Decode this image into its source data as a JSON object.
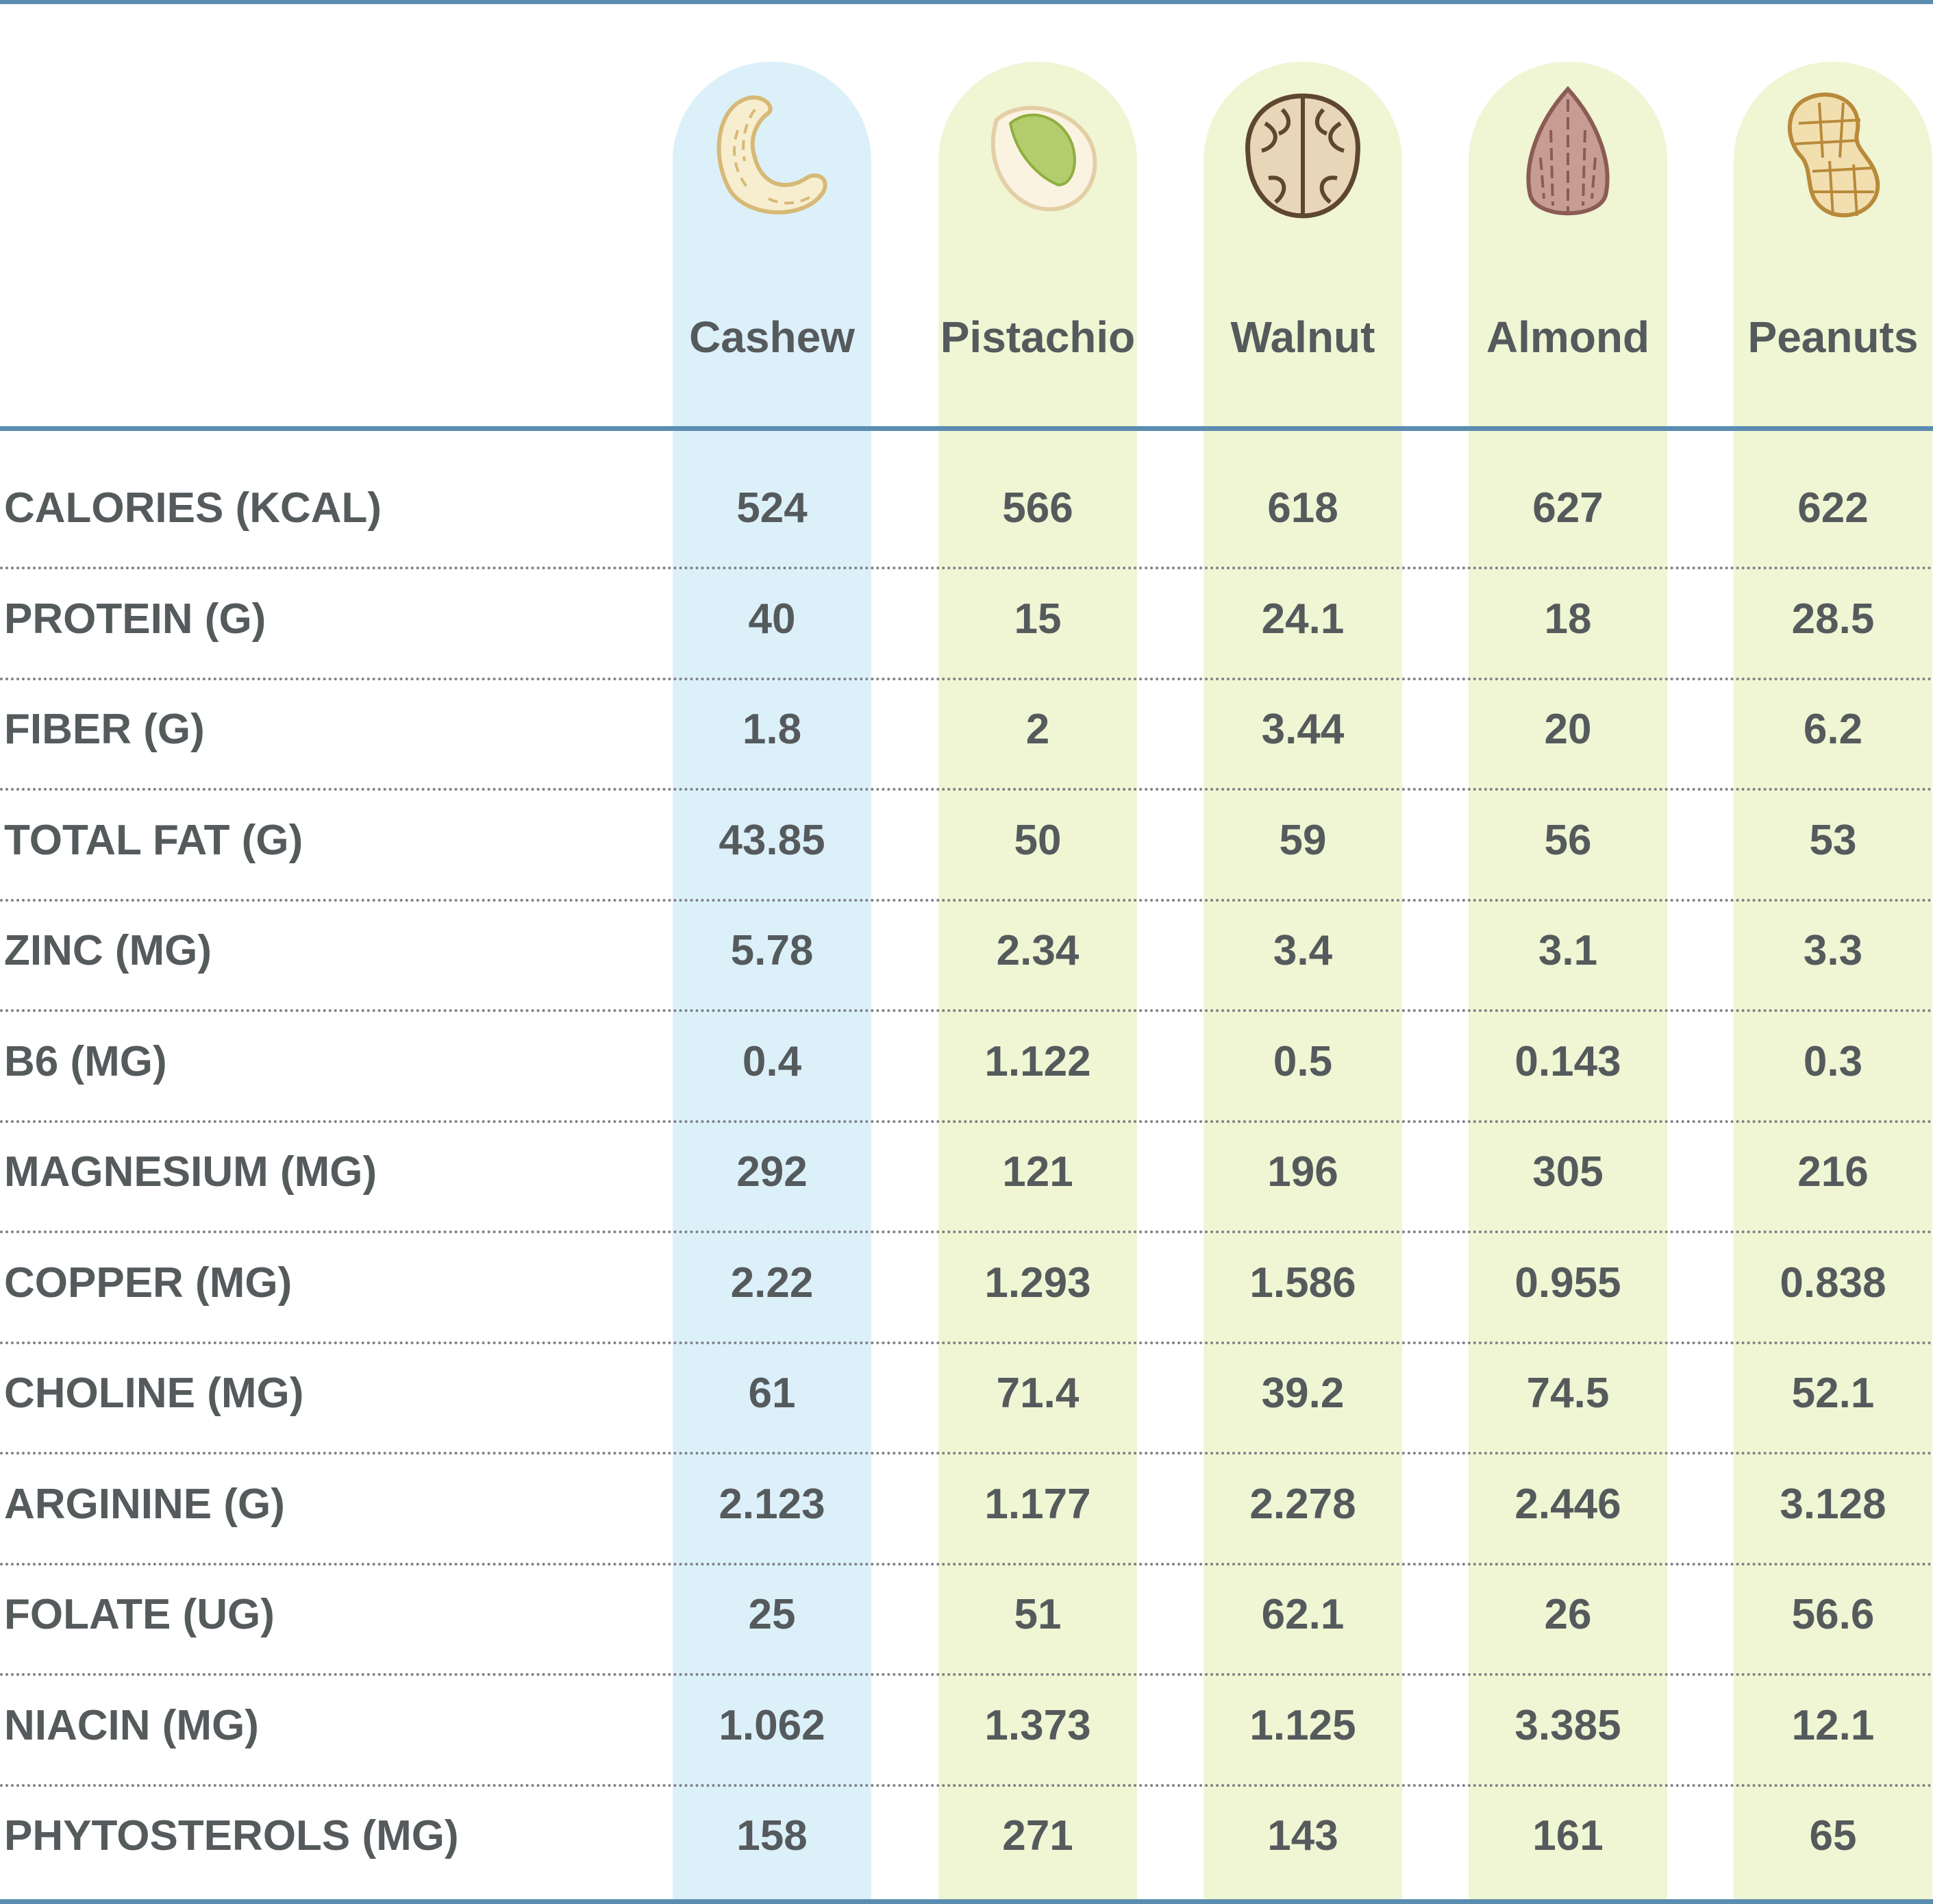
{
  "chart_data": {
    "type": "table",
    "columns": [
      {
        "name": "Cashew",
        "icon": "cashew-icon",
        "bg": "#dcf0fa"
      },
      {
        "name": "Pistachio",
        "icon": "pistachio-icon",
        "bg": "#f0f5d4"
      },
      {
        "name": "Walnut",
        "icon": "walnut-icon",
        "bg": "#f0f5d4"
      },
      {
        "name": "Almond",
        "icon": "almond-icon",
        "bg": "#f0f5d4"
      },
      {
        "name": "Peanuts",
        "icon": "peanut-icon",
        "bg": "#f0f5d4"
      }
    ],
    "rows": [
      {
        "label": "CALORIES (KCAL)",
        "values": [
          "524",
          "566",
          "618",
          "627",
          "622"
        ]
      },
      {
        "label": "PROTEIN (G)",
        "values": [
          "40",
          "15",
          "24.1",
          "18",
          "28.5"
        ]
      },
      {
        "label": "FIBER (G)",
        "values": [
          "1.8",
          "2",
          "3.44",
          "20",
          "6.2"
        ]
      },
      {
        "label": "TOTAL FAT (G)",
        "values": [
          "43.85",
          "50",
          "59",
          "56",
          "53"
        ]
      },
      {
        "label": "ZINC (MG)",
        "values": [
          "5.78",
          "2.34",
          "3.4",
          "3.1",
          "3.3"
        ]
      },
      {
        "label": "B6 (MG)",
        "values": [
          "0.4",
          "1.122",
          "0.5",
          "0.143",
          "0.3"
        ]
      },
      {
        "label": "MAGNESIUM (MG)",
        "values": [
          "292",
          "121",
          "196",
          "305",
          "216"
        ]
      },
      {
        "label": "COPPER (MG)",
        "values": [
          "2.22",
          "1.293",
          "1.586",
          "0.955",
          "0.838"
        ]
      },
      {
        "label": "CHOLINE (MG)",
        "values": [
          "61",
          "71.4",
          "39.2",
          "74.5",
          "52.1"
        ]
      },
      {
        "label": "ARGININE (G)",
        "values": [
          "2.123",
          "1.177",
          "2.278",
          "2.446",
          "3.128"
        ]
      },
      {
        "label": "FOLATE (UG)",
        "values": [
          "25",
          "51",
          "62.1",
          "26",
          "56.6"
        ]
      },
      {
        "label": "NIACIN (MG)",
        "values": [
          "1.062",
          "1.373",
          "1.125",
          "3.385",
          "12.1"
        ]
      },
      {
        "label": "PHYTOSTEROLS (MG)",
        "values": [
          "158",
          "271",
          "143",
          "161",
          "65"
        ]
      }
    ]
  },
  "colors": {
    "rule": "#5b8db0",
    "text": "#555a5c",
    "highlight_column": "#dcf0fa",
    "column": "#f0f5d4"
  }
}
